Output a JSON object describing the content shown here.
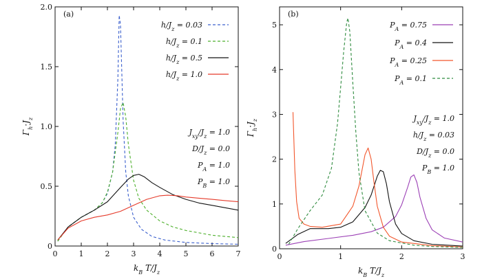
{
  "chart_data": [
    {
      "panel_label": "(a)",
      "type": "line",
      "xlabel": "k_B T/J_z",
      "ylabel": "Γ_h·J_z",
      "xlim": [
        0,
        7
      ],
      "ylim": [
        0,
        2.0
      ],
      "xticks": [
        "0",
        "1",
        "2",
        "3",
        "4",
        "5",
        "6",
        "7"
      ],
      "yticks": [
        "0",
        "0.5",
        "1.0",
        "1.5",
        "2.0"
      ],
      "legend_position": "top-right",
      "annotations": [
        "J_xy/J_z = 1.0",
        "D/J_z = 0.0",
        "P_A = 1.0",
        "P_B = 1.0"
      ],
      "series": [
        {
          "name": "h/J_z = 0.03",
          "color": "#3a5fcd",
          "dash": "dashed",
          "x": [
            0.1,
            0.5,
            1.0,
            1.5,
            1.8,
            2.0,
            2.2,
            2.3,
            2.4,
            2.45,
            2.5,
            2.55,
            2.6,
            2.7,
            2.8,
            3.0,
            3.3,
            3.7,
            4.2,
            5.0,
            6.0,
            7.0
          ],
          "y": [
            0.04,
            0.16,
            0.24,
            0.3,
            0.36,
            0.44,
            0.62,
            0.85,
            1.4,
            1.93,
            1.85,
            1.45,
            1.05,
            0.62,
            0.42,
            0.24,
            0.14,
            0.08,
            0.05,
            0.03,
            0.02,
            0.015
          ]
        },
        {
          "name": "h/J_z = 0.1",
          "color": "#4caf2a",
          "dash": "dashed",
          "x": [
            0.1,
            0.5,
            1.0,
            1.5,
            1.8,
            2.0,
            2.2,
            2.4,
            2.5,
            2.6,
            2.7,
            2.8,
            3.0,
            3.2,
            3.5,
            4.0,
            4.5,
            5.0,
            6.0,
            7.0
          ],
          "y": [
            0.04,
            0.16,
            0.24,
            0.3,
            0.36,
            0.45,
            0.62,
            0.95,
            1.15,
            1.2,
            1.08,
            0.85,
            0.55,
            0.4,
            0.3,
            0.21,
            0.16,
            0.13,
            0.09,
            0.07
          ]
        },
        {
          "name": "h/J_z = 0.5",
          "color": "#111111",
          "dash": "solid",
          "x": [
            0.1,
            0.5,
            1.0,
            1.5,
            2.0,
            2.5,
            2.8,
            3.0,
            3.2,
            3.4,
            3.7,
            4.0,
            4.5,
            5.0,
            5.5,
            6.0,
            6.5,
            7.0
          ],
          "y": [
            0.05,
            0.16,
            0.24,
            0.3,
            0.37,
            0.49,
            0.56,
            0.59,
            0.6,
            0.58,
            0.53,
            0.49,
            0.43,
            0.39,
            0.36,
            0.34,
            0.32,
            0.3
          ]
        },
        {
          "name": "h/J_z = 1.0",
          "color": "#e53929",
          "dash": "solid",
          "x": [
            0.1,
            0.5,
            1.0,
            1.5,
            2.0,
            2.5,
            3.0,
            3.5,
            4.0,
            4.3,
            4.7,
            5.0,
            5.5,
            6.0,
            6.5,
            7.0
          ],
          "y": [
            0.05,
            0.15,
            0.21,
            0.24,
            0.26,
            0.29,
            0.34,
            0.39,
            0.42,
            0.425,
            0.42,
            0.41,
            0.4,
            0.39,
            0.38,
            0.37
          ]
        }
      ]
    },
    {
      "panel_label": "(b)",
      "type": "line",
      "xlabel": "k_B T/J_z",
      "ylabel": "Γ_h·J_z",
      "xlim": [
        0,
        3
      ],
      "ylim": [
        0,
        5.4
      ],
      "xticks": [
        "0",
        "1",
        "2",
        "3"
      ],
      "yticks": [
        "0",
        "1",
        "2",
        "3",
        "4",
        "5"
      ],
      "legend_position": "top-right",
      "annotations": [
        "J_xy/J_z = 1.0",
        "h/J_z = 0.03",
        "D/J_z = 0.0",
        "P_B = 1.0"
      ],
      "series": [
        {
          "name": "P_A = 0.75",
          "color": "#9b3fb5",
          "dash": "solid",
          "x": [
            0.1,
            0.4,
            0.8,
            1.2,
            1.5,
            1.7,
            1.9,
            2.0,
            2.1,
            2.15,
            2.2,
            2.25,
            2.3,
            2.4,
            2.5,
            2.7,
            3.0
          ],
          "y": [
            0.08,
            0.16,
            0.23,
            0.3,
            0.38,
            0.48,
            0.72,
            0.98,
            1.38,
            1.6,
            1.65,
            1.48,
            1.15,
            0.68,
            0.42,
            0.24,
            0.15
          ]
        },
        {
          "name": "P_A = 0.4",
          "color": "#111111",
          "dash": "solid",
          "x": [
            0.1,
            0.3,
            0.5,
            0.8,
            1.0,
            1.2,
            1.4,
            1.5,
            1.6,
            1.65,
            1.7,
            1.75,
            1.8,
            1.9,
            2.0,
            2.2,
            2.5,
            3.0
          ],
          "y": [
            0.12,
            0.32,
            0.45,
            0.45,
            0.48,
            0.6,
            0.92,
            1.2,
            1.62,
            1.75,
            1.72,
            1.45,
            1.05,
            0.55,
            0.34,
            0.18,
            0.1,
            0.06
          ]
        },
        {
          "name": "P_A = 0.25",
          "color": "#f2562c",
          "dash": "solid",
          "x": [
            0.22,
            0.25,
            0.28,
            0.32,
            0.4,
            0.5,
            0.7,
            1.0,
            1.2,
            1.3,
            1.4,
            1.45,
            1.5,
            1.55,
            1.6,
            1.7,
            1.8,
            2.0,
            2.5,
            3.0
          ],
          "y": [
            3.05,
            1.75,
            1.05,
            0.68,
            0.55,
            0.5,
            0.48,
            0.55,
            0.95,
            1.4,
            2.1,
            2.25,
            2.0,
            1.45,
            0.95,
            0.48,
            0.28,
            0.15,
            0.07,
            0.04
          ]
        },
        {
          "name": "P_A = 0.1",
          "color": "#2e8b3e",
          "dash": "dashed",
          "x": [
            0.15,
            0.3,
            0.5,
            0.7,
            0.85,
            0.95,
            1.0,
            1.05,
            1.1,
            1.12,
            1.15,
            1.2,
            1.25,
            1.3,
            1.4,
            1.6,
            1.8,
            2.2,
            2.5,
            3.0
          ],
          "y": [
            0.1,
            0.45,
            0.85,
            1.2,
            1.8,
            2.8,
            3.6,
            4.4,
            5.05,
            5.15,
            4.85,
            3.7,
            2.6,
            1.7,
            0.85,
            0.35,
            0.18,
            0.08,
            0.05,
            0.03
          ]
        }
      ]
    }
  ]
}
